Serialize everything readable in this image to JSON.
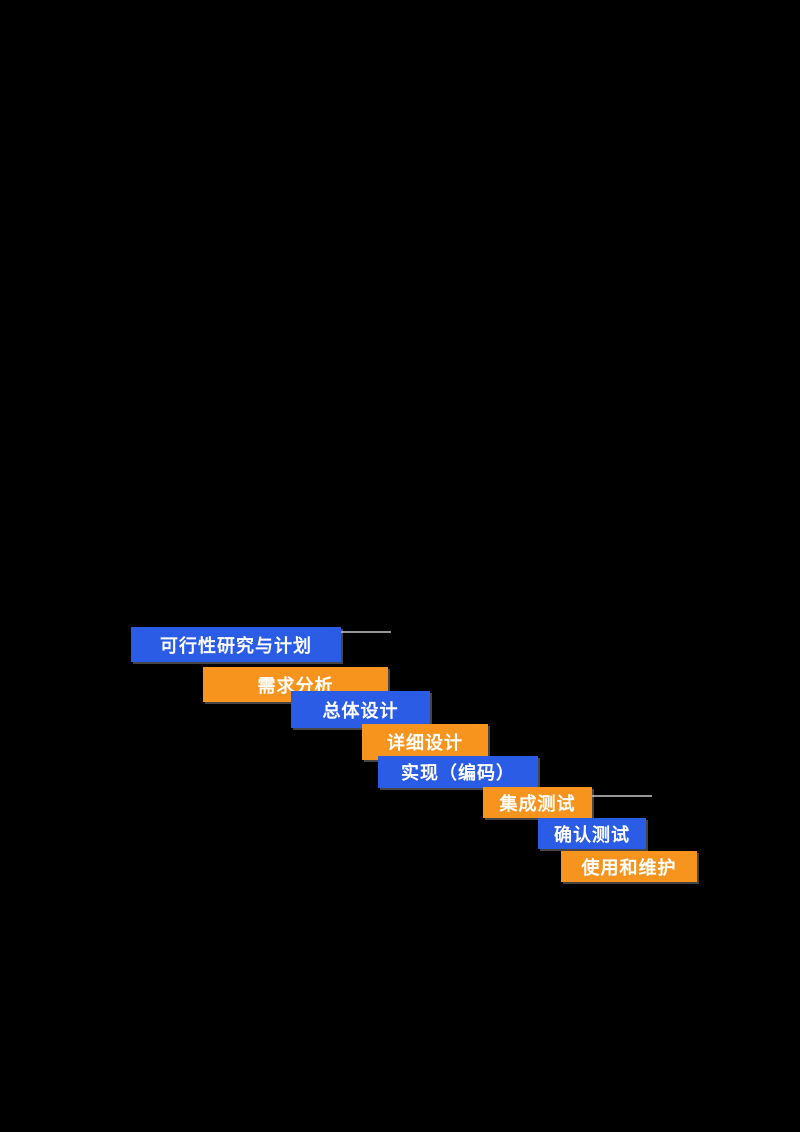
{
  "page": {
    "background_color": "#000000"
  },
  "diagram": {
    "type": "waterfall-model-staircase",
    "colors": {
      "stage_blue": "#2B5CE5",
      "stage_orange": "#F7941D",
      "text": "#FFFFFF",
      "connector": "#C8C8C8"
    },
    "stages": [
      {
        "label": "可行性研究与计划",
        "color": "blue"
      },
      {
        "label": "需求分析",
        "color": "orange"
      },
      {
        "label": "总体设计",
        "color": "blue"
      },
      {
        "label": "详细设计",
        "color": "orange"
      },
      {
        "label": "实现（编码）",
        "color": "blue"
      },
      {
        "label": "集成测试",
        "color": "orange"
      },
      {
        "label": "确认测试",
        "color": "blue"
      },
      {
        "label": "使用和维护",
        "color": "orange"
      }
    ]
  }
}
